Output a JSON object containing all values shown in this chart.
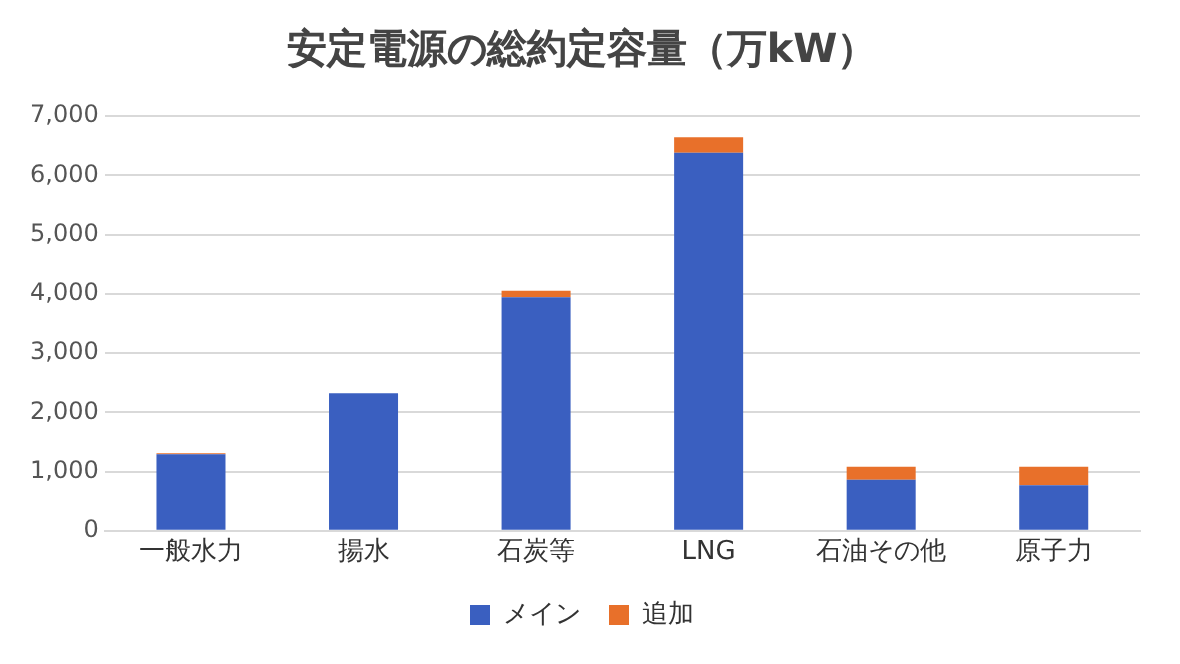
{
  "chart_data": {
    "type": "bar",
    "title": "安定電源の総約定容量（万kW）",
    "categories": [
      "一般水力",
      "揚水",
      "石炭等",
      "LNG",
      "石油その他",
      "原子力"
    ],
    "stacked": true,
    "series": [
      {
        "name": "メイン",
        "color": "#3a5fc0",
        "values": [
          1290,
          2320,
          3940,
          6380,
          860,
          770
        ]
      },
      {
        "name": "追加",
        "color": "#e8702a",
        "values": [
          20,
          0,
          110,
          260,
          220,
          310
        ]
      }
    ],
    "ylim": [
      0,
      7000
    ],
    "yticks": [
      0,
      {
        "value": 1000,
        "label": "1,000"
      },
      {
        "value": 2000,
        "label": "2,000"
      },
      {
        "value": 3000,
        "label": "3,000"
      },
      {
        "value": 4000,
        "label": "4,000"
      },
      {
        "value": 5000,
        "label": "5,000"
      },
      {
        "value": 6000,
        "label": "6,000"
      },
      {
        "value": 7000,
        "label": "7,000"
      }
    ],
    "grid": "y",
    "legend": "bottom"
  }
}
